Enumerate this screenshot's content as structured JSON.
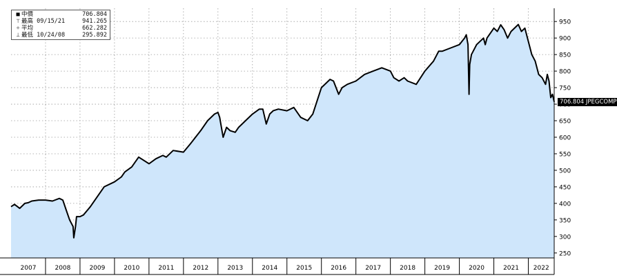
{
  "legend": {
    "last_label": "中價",
    "last_value": "706.804",
    "high_label": "最高 09/15/21",
    "high_value": "941.265",
    "avg_label": "平均",
    "avg_value": "662.282",
    "low_label": "最低 10/24/08",
    "low_value": "295.892"
  },
  "last_tag": "706.804 JPEGCOMP",
  "chart_data": {
    "type": "area",
    "x_tick_labels": [
      "2007",
      "2008",
      "2009",
      "2010",
      "2011",
      "2012",
      "2013",
      "2014",
      "2015",
      "2016",
      "2017",
      "2018",
      "2019",
      "2020",
      "2021",
      "2022"
    ],
    "y_ticks": [
      250,
      300,
      350,
      400,
      450,
      500,
      550,
      600,
      650,
      700,
      750,
      800,
      850,
      900,
      950
    ],
    "ylim": [
      235,
      990
    ],
    "xlim": [
      2007.0,
      2022.75
    ],
    "grid": true,
    "y_axis_side": "right",
    "fill_color": "#cfe6fb",
    "line_color": "#000000",
    "series": [
      {
        "x": [
          2007.0,
          2007.1,
          2007.25,
          2007.4,
          2007.5,
          2007.6,
          2007.8,
          2008.0,
          2008.2,
          2008.4,
          2008.5,
          2008.6,
          2008.7,
          2008.8,
          2008.82,
          2008.87,
          2008.9,
          2009.0,
          2009.1,
          2009.3,
          2009.5,
          2009.7,
          2010.0,
          2010.2,
          2010.3,
          2010.5,
          2010.7,
          2011.0,
          2011.2,
          2011.4,
          2011.5,
          2011.7,
          2012.0,
          2012.2,
          2012.5,
          2012.7,
          2012.9,
          2013.0,
          2013.05,
          2013.15,
          2013.25,
          2013.35,
          2013.5,
          2013.6,
          2013.75,
          2014.0,
          2014.2,
          2014.3,
          2014.4,
          2014.5,
          2014.6,
          2014.75,
          2015.0,
          2015.2,
          2015.4,
          2015.6,
          2015.75,
          2016.0,
          2016.25,
          2016.35,
          2016.5,
          2016.6,
          2016.75,
          2017.0,
          2017.25,
          2017.5,
          2017.75,
          2018.0,
          2018.1,
          2018.25,
          2018.4,
          2018.5,
          2018.75,
          2019.0,
          2019.25,
          2019.4,
          2019.5,
          2019.75,
          2020.0,
          2020.15,
          2020.2,
          2020.25,
          2020.28,
          2020.3,
          2020.35,
          2020.5,
          2020.7,
          2020.75,
          2020.8,
          2021.0,
          2021.1,
          2021.2,
          2021.3,
          2021.4,
          2021.5,
          2021.71,
          2021.8,
          2021.9,
          2022.0,
          2022.1,
          2022.2,
          2022.3,
          2022.4,
          2022.5,
          2022.55,
          2022.6,
          2022.65,
          2022.7,
          2022.75
        ],
        "y": [
          390,
          397,
          385,
          400,
          402,
          407,
          410,
          410,
          407,
          415,
          410,
          380,
          350,
          330,
          296,
          330,
          360,
          360,
          365,
          390,
          420,
          450,
          465,
          480,
          495,
          510,
          540,
          520,
          535,
          545,
          540,
          560,
          555,
          580,
          620,
          650,
          670,
          675,
          660,
          600,
          630,
          620,
          615,
          630,
          645,
          670,
          685,
          685,
          640,
          670,
          680,
          685,
          680,
          690,
          660,
          650,
          670,
          750,
          775,
          770,
          730,
          750,
          760,
          770,
          790,
          800,
          810,
          800,
          780,
          770,
          780,
          770,
          760,
          800,
          830,
          860,
          860,
          870,
          880,
          900,
          910,
          880,
          730,
          820,
          850,
          880,
          900,
          880,
          900,
          930,
          920,
          940,
          925,
          900,
          920,
          941,
          920,
          930,
          890,
          850,
          830,
          790,
          780,
          760,
          790,
          770,
          720,
          730,
          707
        ]
      }
    ]
  }
}
